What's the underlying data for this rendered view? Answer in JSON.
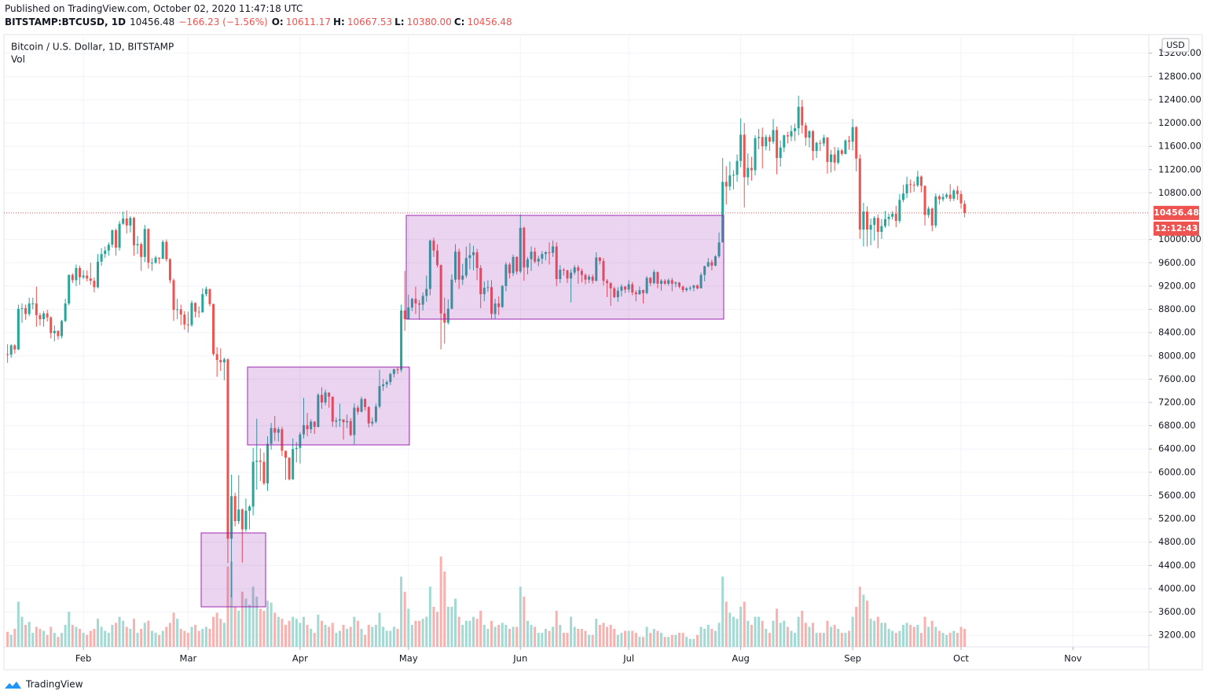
{
  "header": {
    "published": "Published on TradingView.com, October 02, 2020 11:47:18 UTC",
    "symbol": "BITSTAMP:BTCUSD, 1D",
    "last": "10456.48",
    "change": "−166.23 (−1.56%)",
    "ohlc": [
      {
        "label": "O:",
        "value": "10611.17"
      },
      {
        "label": "H:",
        "value": "10667.53"
      },
      {
        "label": "L:",
        "value": "10380.00"
      },
      {
        "label": "C:",
        "value": "10456.48"
      }
    ]
  },
  "footer": {
    "brand": "TradingView"
  },
  "chart_data": {
    "type": "candlestick",
    "title": "Bitcoin / U.S. Dollar, 1D, BITSTAMP",
    "volume_name": "Vol",
    "currency": "USD",
    "up_color": "#26a69a",
    "down_color": "#ef5350",
    "up_volume_color": "#a3d9d3",
    "down_volume_color": "#f7b1ae",
    "grid": true,
    "last_price": {
      "value": 10456.48,
      "label": "10456.48"
    },
    "countdown": "12:12:43",
    "xlim": [
      -1,
      316
    ],
    "xticks": [
      {
        "value": 21,
        "label": "Feb"
      },
      {
        "value": 50,
        "label": "Mar"
      },
      {
        "value": 81,
        "label": "Apr"
      },
      {
        "value": 111,
        "label": "May"
      },
      {
        "value": 142,
        "label": "Jun"
      },
      {
        "value": 172,
        "label": "Jul"
      },
      {
        "value": 203,
        "label": "Aug"
      },
      {
        "value": 234,
        "label": "Sep"
      },
      {
        "value": 264,
        "label": "Oct"
      },
      {
        "value": 295,
        "label": "Nov"
      }
    ],
    "ylim": [
      3000,
      13520
    ],
    "yticks": [
      {
        "value": 3200,
        "label": "3200.00"
      },
      {
        "value": 3600,
        "label": "3600.00"
      },
      {
        "value": 4000,
        "label": "4000.00"
      },
      {
        "value": 4400,
        "label": "4400.00"
      },
      {
        "value": 4800,
        "label": "4800.00"
      },
      {
        "value": 5200,
        "label": "5200.00"
      },
      {
        "value": 5600,
        "label": "5600.00"
      },
      {
        "value": 6000,
        "label": "6000.00"
      },
      {
        "value": 6400,
        "label": "6400.00"
      },
      {
        "value": 6800,
        "label": "6800.00"
      },
      {
        "value": 7200,
        "label": "7200.00"
      },
      {
        "value": 7600,
        "label": "7600.00"
      },
      {
        "value": 8000,
        "label": "8000.00"
      },
      {
        "value": 8400,
        "label": "8400.00"
      },
      {
        "value": 8800,
        "label": "8800.00"
      },
      {
        "value": 9200,
        "label": "9200.00"
      },
      {
        "value": 9600,
        "label": "9600.00"
      },
      {
        "value": 10000,
        "label": "10000.00"
      },
      {
        "value": 10800,
        "label": "10800.00"
      },
      {
        "value": 11200,
        "label": "11200.00"
      },
      {
        "value": 11600,
        "label": "11600.00"
      },
      {
        "value": 12000,
        "label": "12000.00"
      },
      {
        "value": 12400,
        "label": "12400.00"
      },
      {
        "value": 12800,
        "label": "12800.00"
      },
      {
        "value": 13200,
        "label": "13200.00"
      }
    ],
    "open": [
      8030,
      8020,
      8180,
      8110,
      8810,
      8820,
      8720,
      8900,
      8900,
      8700,
      8630,
      8730,
      8660,
      8390,
      8430,
      8340,
      8600,
      8900,
      9390,
      9300,
      9510,
      9350,
      9380,
      9330,
      9290,
      9180,
      9620,
      9750,
      9810,
      9910,
      10160,
      9860,
      10270,
      10360,
      10240,
      10370,
      9900,
      9920,
      9700,
      10180,
      9600,
      9600,
      9690,
      9670,
      9960,
      9660,
      9300,
      8790,
      8800,
      8710,
      8540,
      8530,
      8910,
      8760,
      8750,
      9060,
      9150,
      8890,
      8030,
      7930,
      7890,
      7940,
      4860,
      5590,
      5160,
      5360,
      5020,
      5340,
      5410,
      6180,
      6200,
      6180,
      5810,
      6490,
      6760,
      6680,
      6740,
      6370,
      6250,
      5880,
      6400,
      6420,
      6650,
      6810,
      6740,
      6870,
      6780,
      7330,
      7200,
      7370,
      7300,
      6870,
      6890,
      6910,
      6860,
      6880,
      6640,
      7110,
      7040,
      7260,
      7120,
      6840,
      6870,
      7130,
      7480,
      7510,
      7550,
      7690,
      7770,
      7760,
      8780,
      8630,
      8830,
      8980,
      8900,
      8880,
      9030,
      9150,
      9980,
      9810,
      9560,
      8730,
      8570,
      8810,
      9310,
      9790,
      9310,
      9380,
      9680,
      9730,
      9780,
      9510,
      9060,
      9170,
      9180,
      8720,
      8900,
      8840,
      9200,
      9570,
      9420,
      9700,
      9450,
      10200,
      9520,
      9660,
      9790,
      9620,
      9670,
      9750,
      9780,
      9770,
      9880,
      9320,
      9480,
      9470,
      9330,
      9430,
      9520,
      9460,
      9390,
      9310,
      9360,
      9290,
      9690,
      9630,
      9290,
      9250,
      9160,
      9010,
      9120,
      9190,
      9140,
      9230,
      9090,
      9060,
      9130,
      9080,
      9340,
      9250,
      9440,
      9240,
      9290,
      9240,
      9300,
      9240,
      9260,
      9190,
      9130,
      9160,
      9170,
      9210,
      9160,
      9390,
      9540,
      9610,
      9550,
      9710,
      9950,
      10990,
      10910,
      11100,
      11110,
      11350,
      11800,
      11070,
      11230,
      11190,
      11740,
      11760,
      11600,
      11760,
      11680,
      11880,
      11400,
      11580,
      11790,
      11770,
      11860,
      11910,
      12280,
      11960,
      11750,
      11860,
      11520,
      11660,
      11650,
      11750,
      11330,
      11460,
      11320,
      11530,
      11470,
      11700,
      11680,
      11930,
      11390,
      10170,
      10480,
      10170,
      10250,
      10370,
      10130,
      10230,
      10350,
      10390,
      10440,
      10320,
      10680,
      10790,
      10950,
      10940,
      10930,
      11080,
      10920,
      10420,
      10530,
      10240,
      10740,
      10690,
      10730,
      10770,
      10700,
      10840,
      10780,
      10611.17
    ],
    "high": [
      8200,
      8200,
      8200,
      8880,
      8900,
      8880,
      9000,
      9000,
      9190,
      8740,
      8770,
      8790,
      8680,
      8520,
      8440,
      8620,
      8980,
      9400,
      9420,
      9570,
      9550,
      9470,
      9470,
      9600,
      9350,
      9750,
      9850,
      9880,
      9950,
      10170,
      10190,
      10320,
      10480,
      10500,
      10400,
      10390,
      10060,
      9950,
      10250,
      10190,
      9680,
      9720,
      9690,
      9990,
      10000,
      9680,
      9330,
      8980,
      8880,
      8770,
      8760,
      8950,
      8920,
      8850,
      9160,
      9190,
      9150,
      8900,
      8150,
      8130,
      7970,
      7960,
      5960,
      5650,
      5950,
      5380,
      5550,
      5440,
      6420,
      6920,
      6410,
      6340,
      6620,
      6850,
      6970,
      6780,
      6780,
      6370,
      6260,
      6580,
      6520,
      6690,
      7280,
      7020,
      6910,
      6880,
      7360,
      7460,
      7420,
      7370,
      7300,
      6940,
      7180,
      6910,
      6990,
      6930,
      7180,
      7150,
      7300,
      7270,
      7140,
      6940,
      7180,
      7760,
      7600,
      7580,
      7710,
      7780,
      7800,
      8880,
      9460,
      9050,
      9000,
      9190,
      8960,
      9090,
      9380,
      10000,
      10030,
      9920,
      9570,
      9000,
      8970,
      9400,
      9920,
      9840,
      9580,
      9880,
      9940,
      9890,
      9840,
      9560,
      9280,
      9300,
      9300,
      8980,
      9020,
      9220,
      9610,
      9600,
      9740,
      9710,
      10430,
      10220,
      9700,
      9880,
      9860,
      9720,
      9800,
      9800,
      9950,
      9980,
      9950,
      9560,
      9510,
      9480,
      9490,
      9560,
      9560,
      9500,
      9420,
      9400,
      9400,
      9780,
      9700,
      9680,
      9320,
      9270,
      9190,
      9180,
      9230,
      9200,
      9300,
      9270,
      9130,
      9190,
      9140,
      9370,
      9360,
      9480,
      9450,
      9320,
      9320,
      9330,
      9340,
      9280,
      9270,
      9210,
      9180,
      9200,
      9220,
      9230,
      9430,
      9550,
      9680,
      9650,
      9730,
      10120,
      11400,
      11260,
      11340,
      11190,
      11460,
      12080,
      12000,
      11480,
      11420,
      11790,
      11900,
      11920,
      11800,
      11800,
      12070,
      11940,
      11700,
      11800,
      11850,
      11960,
      11990,
      12470,
      12400,
      12010,
      11880,
      11880,
      11680,
      11710,
      11800,
      11760,
      11540,
      11590,
      11580,
      11560,
      11720,
      11780,
      12070,
      11950,
      11460,
      10630,
      10570,
      10360,
      10400,
      10430,
      10350,
      10490,
      10440,
      10490,
      10580,
      10780,
      10940,
      11080,
      11030,
      11000,
      11180,
      11100,
      10930,
      10570,
      10550,
      10790,
      10770,
      10790,
      10800,
      10950,
      10870,
      10920,
      10840,
      10667.53
    ],
    "low": [
      7880,
      7970,
      8040,
      8100,
      8570,
      8620,
      8680,
      8800,
      8500,
      8520,
      8500,
      8590,
      8300,
      8250,
      8280,
      8300,
      8580,
      8870,
      9250,
      9200,
      9220,
      9320,
      9280,
      9220,
      9090,
      9160,
      9550,
      9680,
      9720,
      9860,
      9720,
      9810,
      10250,
      10100,
      10120,
      9720,
      9750,
      9460,
      9610,
      9500,
      9460,
      9580,
      9580,
      9660,
      9620,
      9250,
      8600,
      8630,
      8530,
      8450,
      8400,
      8500,
      8660,
      8660,
      8740,
      9020,
      8850,
      8000,
      7640,
      7740,
      7580,
      4440,
      3850,
      5070,
      5110,
      4450,
      4980,
      5020,
      5260,
      5700,
      5850,
      5780,
      5680,
      6390,
      6540,
      6530,
      6280,
      5870,
      5860,
      5870,
      6170,
      6150,
      6580,
      6620,
      6670,
      6660,
      6770,
      7090,
      7150,
      7110,
      6780,
      6770,
      6780,
      6560,
      6760,
      6620,
      6480,
      6990,
      7030,
      7060,
      6770,
      6790,
      6840,
      7100,
      7400,
      7450,
      7500,
      7630,
      7690,
      7720,
      8430,
      8630,
      8770,
      8720,
      8620,
      8780,
      8930,
      9040,
      9700,
      9520,
      8110,
      8210,
      8540,
      8800,
      9260,
      9150,
      9220,
      9340,
      9490,
      9470,
      9300,
      8820,
      8940,
      9100,
      8630,
      8640,
      8700,
      8820,
      9110,
      9330,
      9370,
      9400,
      9420,
      9290,
      9400,
      9460,
      9590,
      9540,
      9580,
      9640,
      9570,
      9700,
      9200,
      9250,
      9380,
      9250,
      8920,
      9390,
      9240,
      9260,
      9230,
      9250,
      9240,
      9280,
      9570,
      9210,
      9010,
      8860,
      8990,
      8930,
      9020,
      9080,
      9090,
      9040,
      8940,
      9050,
      8900,
      9060,
      9200,
      9230,
      9160,
      9120,
      9220,
      9210,
      9110,
      9180,
      9160,
      9090,
      9100,
      9120,
      9110,
      9140,
      9160,
      9280,
      9520,
      9470,
      9540,
      9680,
      9950,
      10600,
      10840,
      10860,
      10990,
      11240,
      10550,
      10930,
      11010,
      11100,
      11550,
      11220,
      11530,
      11520,
      11640,
      11120,
      11250,
      11500,
      11650,
      11690,
      11690,
      11790,
      11820,
      11610,
      11580,
      11360,
      11400,
      11520,
      11600,
      11130,
      11150,
      11180,
      11290,
      11440,
      11460,
      11540,
      11530,
      11170,
      10010,
      9880,
      9880,
      9900,
      9980,
      9850,
      10010,
      10200,
      10230,
      10340,
      10210,
      10280,
      10640,
      10710,
      10800,
      10820,
      10900,
      10810,
      10240,
      10370,
      10140,
      10200,
      10600,
      10650,
      10700,
      10650,
      10660,
      10680,
      10530,
      10380
    ],
    "close": [
      8020,
      8180,
      8110,
      8810,
      8820,
      8720,
      8900,
      8900,
      8700,
      8630,
      8730,
      8660,
      8390,
      8430,
      8340,
      8600,
      8900,
      9390,
      9300,
      9510,
      9350,
      9380,
      9330,
      9290,
      9180,
      9620,
      9750,
      9810,
      9910,
      10160,
      9860,
      10270,
      10360,
      10240,
      10370,
      9900,
      9920,
      9700,
      10180,
      9600,
      9600,
      9690,
      9670,
      9960,
      9660,
      9300,
      8790,
      8800,
      8710,
      8540,
      8530,
      8910,
      8760,
      8750,
      9060,
      9150,
      8890,
      8030,
      7930,
      7890,
      7940,
      4860,
      5590,
      5160,
      5360,
      5020,
      5340,
      5410,
      6180,
      6200,
      6180,
      5810,
      6490,
      6760,
      6680,
      6740,
      6370,
      6250,
      5880,
      6400,
      6420,
      6650,
      6810,
      6740,
      6870,
      6780,
      7330,
      7200,
      7370,
      7300,
      6870,
      6890,
      6910,
      6860,
      6880,
      6640,
      7110,
      7040,
      7260,
      7120,
      6840,
      6870,
      7130,
      7480,
      7510,
      7550,
      7690,
      7770,
      7760,
      8780,
      8630,
      8830,
      8980,
      8900,
      8880,
      9030,
      9150,
      9980,
      9810,
      9560,
      8730,
      8570,
      8810,
      9310,
      9790,
      9310,
      9380,
      9680,
      9730,
      9780,
      9510,
      9060,
      9170,
      9180,
      8720,
      8900,
      8840,
      9200,
      9570,
      9420,
      9700,
      9450,
      10200,
      9520,
      9660,
      9790,
      9620,
      9670,
      9750,
      9780,
      9770,
      9880,
      9320,
      9480,
      9470,
      9330,
      9430,
      9520,
      9460,
      9390,
      9310,
      9360,
      9290,
      9690,
      9630,
      9290,
      9250,
      9160,
      9010,
      9120,
      9190,
      9140,
      9230,
      9090,
      9060,
      9130,
      9080,
      9340,
      9250,
      9440,
      9240,
      9290,
      9240,
      9300,
      9240,
      9260,
      9190,
      9130,
      9160,
      9170,
      9210,
      9160,
      9390,
      9540,
      9610,
      9550,
      9710,
      9950,
      10990,
      10910,
      11100,
      11110,
      11350,
      11800,
      11070,
      11230,
      11190,
      11740,
      11760,
      11600,
      11760,
      11680,
      11880,
      11400,
      11580,
      11790,
      11770,
      11860,
      11910,
      12280,
      11960,
      11750,
      11860,
      11520,
      11660,
      11650,
      11750,
      11330,
      11460,
      11320,
      11530,
      11470,
      11700,
      11680,
      11930,
      11390,
      10170,
      10480,
      10170,
      10250,
      10370,
      10130,
      10230,
      10350,
      10390,
      10440,
      10320,
      10680,
      10790,
      10950,
      10940,
      10930,
      11080,
      10920,
      10420,
      10530,
      10240,
      10740,
      10690,
      10730,
      10770,
      10700,
      10840,
      10780,
      10620,
      10456.48
    ],
    "volume": [
      15,
      12,
      18,
      45,
      30,
      22,
      25,
      14,
      20,
      18,
      16,
      12,
      20,
      14,
      10,
      14,
      22,
      35,
      22,
      20,
      18,
      14,
      12,
      16,
      18,
      28,
      20,
      16,
      14,
      22,
      24,
      30,
      26,
      20,
      18,
      28,
      14,
      18,
      24,
      26,
      16,
      14,
      12,
      16,
      20,
      24,
      34,
      28,
      18,
      16,
      14,
      20,
      22,
      16,
      18,
      20,
      18,
      30,
      34,
      28,
      24,
      80,
      85,
      40,
      36,
      55,
      48,
      42,
      60,
      50,
      38,
      36,
      46,
      44,
      34,
      30,
      28,
      22,
      26,
      30,
      28,
      24,
      30,
      22,
      18,
      14,
      32,
      26,
      22,
      20,
      24,
      14,
      16,
      22,
      18,
      20,
      30,
      26,
      18,
      12,
      22,
      20,
      22,
      34,
      20,
      16,
      16,
      20,
      18,
      70,
      55,
      38,
      22,
      26,
      26,
      28,
      30,
      60,
      40,
      35,
      90,
      75,
      40,
      40,
      48,
      30,
      22,
      26,
      26,
      30,
      28,
      36,
      22,
      18,
      26,
      20,
      22,
      24,
      22,
      18,
      20,
      20,
      60,
      50,
      26,
      22,
      20,
      14,
      14,
      18,
      16,
      20,
      36,
      22,
      14,
      14,
      30,
      20,
      18,
      18,
      16,
      12,
      12,
      28,
      22,
      24,
      20,
      22,
      18,
      12,
      14,
      16,
      16,
      16,
      14,
      10,
      10,
      20,
      14,
      18,
      16,
      14,
      10,
      10,
      12,
      12,
      14,
      14,
      10,
      8,
      8,
      12,
      20,
      18,
      22,
      18,
      16,
      24,
      70,
      45,
      34,
      30,
      28,
      40,
      45,
      26,
      22,
      30,
      30,
      26,
      18,
      14,
      26,
      38,
      24,
      26,
      20,
      16,
      14,
      30,
      36,
      24,
      20,
      24,
      14,
      14,
      14,
      26,
      20,
      22,
      18,
      14,
      14,
      16,
      30,
      40,
      60,
      52,
      46,
      28,
      26,
      30,
      24,
      24,
      18,
      16,
      14,
      16,
      22,
      24,
      22,
      20,
      22,
      14,
      30,
      20,
      26,
      20,
      16,
      14,
      12,
      14,
      16,
      14,
      20,
      18
    ]
  }
}
